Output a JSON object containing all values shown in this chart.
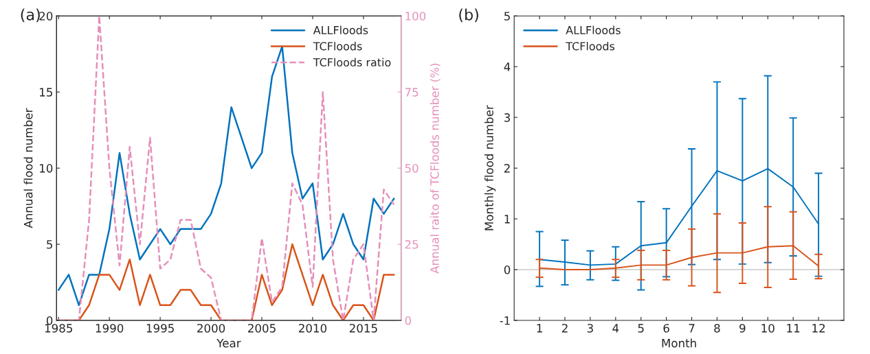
{
  "chart_data": [
    {
      "type": "line",
      "xlabel": "Year",
      "ylabel": "Annual flood number",
      "y2label": "Annual raito of TCFloods number (%)",
      "annotations": [
        "(a)"
      ],
      "x": [
        1985,
        1986,
        1987,
        1988,
        1989,
        1990,
        1991,
        1992,
        1993,
        1994,
        1995,
        1996,
        1997,
        1998,
        1999,
        2000,
        2001,
        2002,
        2003,
        2004,
        2005,
        2006,
        2007,
        2008,
        2009,
        2010,
        2011,
        2012,
        2013,
        2014,
        2015,
        2016,
        2017,
        2018
      ],
      "series": [
        {
          "name": "ALLFloods",
          "color": "#0072bd",
          "values": [
            2,
            3,
            1,
            3,
            3,
            6,
            11,
            7,
            4,
            5,
            6,
            5,
            6,
            6,
            6,
            7,
            9,
            14,
            12,
            10,
            11,
            16,
            18,
            11,
            8,
            9,
            4,
            5,
            7,
            5,
            4,
            8,
            7,
            8
          ]
        },
        {
          "name": "TCFloods",
          "color": "#d95319",
          "values": [
            0,
            0,
            0,
            1,
            3,
            3,
            2,
            4,
            1,
            3,
            1,
            1,
            2,
            2,
            1,
            1,
            0,
            0,
            0,
            0,
            3,
            1,
            2,
            5,
            3,
            1,
            3,
            1,
            0,
            1,
            1,
            0,
            3,
            3
          ]
        },
        {
          "name": "TCFloods ratio",
          "color": "#e58fba",
          "axis": "y2",
          "line_style": "dashed",
          "values": [
            0,
            0,
            0,
            33,
            100,
            50,
            18,
            57,
            25,
            60,
            17,
            20,
            33,
            33,
            17,
            14,
            0,
            0,
            0,
            0,
            27,
            6,
            11,
            45,
            38,
            11,
            75,
            20,
            0,
            20,
            25,
            0,
            43,
            38
          ]
        }
      ],
      "xlim": [
        1984.8,
        2018.7
      ],
      "xticks": [
        1985,
        1990,
        1995,
        2000,
        2005,
        2010,
        2015
      ],
      "ylim": [
        0,
        20
      ],
      "yticks": [
        0,
        5,
        10,
        15,
        20
      ],
      "y2lim": [
        0,
        100
      ],
      "y2ticks": [
        0,
        25,
        50,
        75,
        100
      ],
      "grid": false,
      "legend": "top right",
      "marker": "none",
      "line_style": "solid"
    },
    {
      "type": "line",
      "xlabel": "Month",
      "ylabel": "Monthly flood number",
      "annotations": [
        "(b)"
      ],
      "x": [
        1,
        2,
        3,
        4,
        5,
        6,
        7,
        8,
        9,
        10,
        11,
        12
      ],
      "series": [
        {
          "name": "ALLFloods",
          "color": "#0072bd",
          "values": [
            0.2,
            0.15,
            0.09,
            0.11,
            0.47,
            0.53,
            1.25,
            1.95,
            1.75,
            1.99,
            1.63,
            0.9
          ],
          "errors": [
            [
              -0.33,
              0.75
            ],
            [
              -0.3,
              0.58
            ],
            [
              -0.2,
              0.37
            ],
            [
              -0.21,
              0.45
            ],
            [
              -0.4,
              1.34
            ],
            [
              -0.14,
              1.2
            ],
            [
              0.1,
              2.38
            ],
            [
              0.2,
              3.7
            ],
            [
              0.11,
              3.37
            ],
            [
              0.14,
              3.82
            ],
            [
              0.27,
              2.99
            ],
            [
              -0.13,
              1.9
            ]
          ]
        },
        {
          "name": "TCFloods",
          "color": "#d95319",
          "values": [
            0.03,
            0,
            0,
            0.03,
            0.09,
            0.09,
            0.24,
            0.33,
            0.33,
            0.45,
            0.47,
            0.07
          ],
          "errors": [
            [
              -0.15,
              0.2
            ],
            null,
            null,
            [
              -0.15,
              0.2
            ],
            [
              -0.2,
              0.38
            ],
            [
              -0.2,
              0.38
            ],
            [
              -0.32,
              0.8
            ],
            [
              -0.45,
              1.1
            ],
            [
              -0.27,
              0.92
            ],
            [
              -0.35,
              1.24
            ],
            [
              -0.19,
              1.14
            ],
            [
              -0.18,
              0.3
            ]
          ]
        }
      ],
      "xlim": [
        0,
        13
      ],
      "xticks": [
        1,
        2,
        3,
        4,
        5,
        6,
        7,
        8,
        9,
        10,
        11,
        12
      ],
      "ylim": [
        -1,
        5
      ],
      "yticks": [
        -1,
        0,
        1,
        2,
        3,
        4,
        5
      ],
      "ref_lines": [
        {
          "axis": "y",
          "value": 0,
          "color": "#b0b0b0"
        }
      ],
      "grid": false,
      "legend": "top left",
      "marker": "none",
      "line_style": "solid"
    }
  ]
}
